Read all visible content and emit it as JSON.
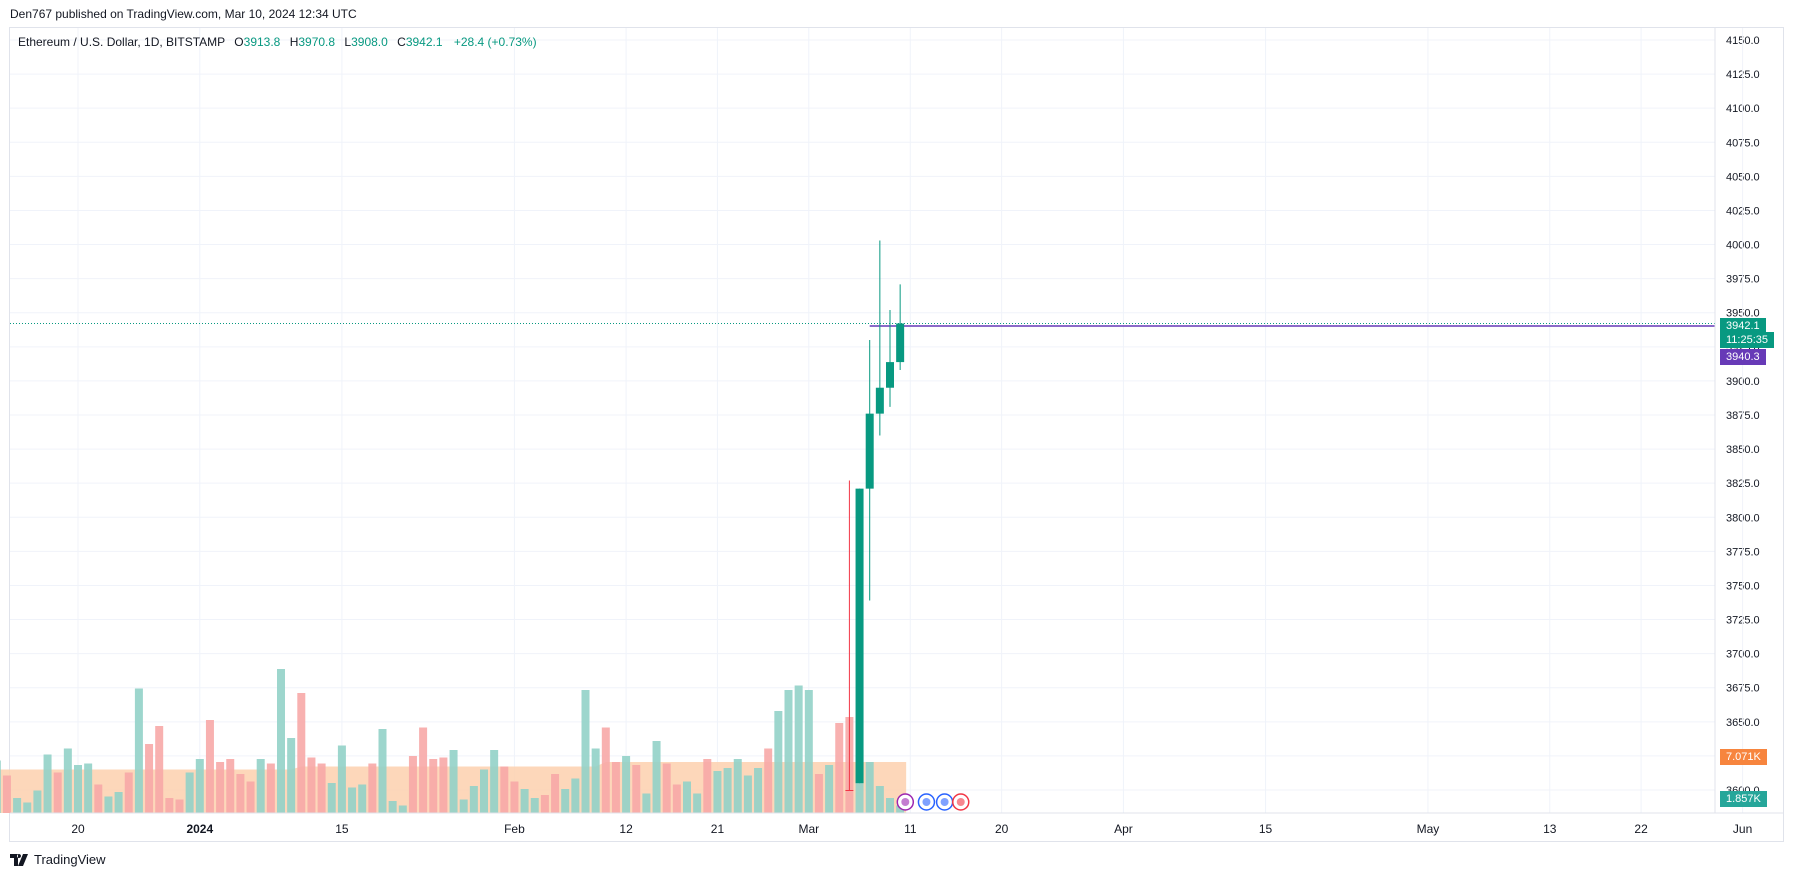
{
  "header": {
    "publisher_line": "Den767 published on TradingView.com, Mar 10, 2024 12:34 UTC"
  },
  "legend": {
    "symbol": "Ethereum / U.S. Dollar, 1D, BITSTAMP",
    "o_label": "O",
    "o_value": "3913.8",
    "h_label": "H",
    "h_value": "3970.8",
    "l_label": "L",
    "l_value": "3908.0",
    "c_label": "C",
    "c_value": "3942.1",
    "change": "+28.4 (+0.73%)"
  },
  "labels": {
    "last_price": "3942.1",
    "countdown": "11:25:35",
    "prev_close": "3940.3",
    "vol_ma": "7.071K",
    "volume": "1.857K"
  },
  "footer": {
    "brand": "TradingView"
  },
  "colors": {
    "up": "#089981",
    "down": "#f23645",
    "up_vol": "#92d1c8",
    "down_vol": "#f7a9a7",
    "vol_ma_fill": "#fdd0ae",
    "prev_close": "#673ab7",
    "vol_label": "#f7853e"
  },
  "chart_data": {
    "type": "candlestick",
    "y_ticks": [
      "4150.0",
      "4125.0",
      "4100.0",
      "4075.0",
      "4050.0",
      "4025.0",
      "4000.0",
      "3975.0",
      "3950.0",
      "3925.0",
      "3900.0",
      "3875.0",
      "3850.0",
      "3825.0",
      "3800.0",
      "3775.0",
      "3750.0",
      "3725.0",
      "3700.0",
      "3675.0",
      "3650.0",
      "3625.0",
      "3600.0"
    ],
    "x_ticks": [
      {
        "label": "20",
        "date": "2023-12-20"
      },
      {
        "label": "2024",
        "date": "2024-01-01",
        "bold": true
      },
      {
        "label": "15",
        "date": "2024-01-15"
      },
      {
        "label": "Feb",
        "date": "2024-02-01"
      },
      {
        "label": "12",
        "date": "2024-02-12"
      },
      {
        "label": "21",
        "date": "2024-02-21"
      },
      {
        "label": "Mar",
        "date": "2024-03-01"
      },
      {
        "label": "11",
        "date": "2024-03-11"
      },
      {
        "label": "20",
        "date": "2024-03-20"
      },
      {
        "label": "Apr",
        "date": "2024-04-01"
      },
      {
        "label": "15",
        "date": "2024-04-15"
      },
      {
        "label": "May",
        "date": "2024-05-01"
      },
      {
        "label": "13",
        "date": "2024-05-13"
      },
      {
        "label": "22",
        "date": "2024-05-22"
      },
      {
        "label": "Jun",
        "date": "2024-06-01"
      }
    ],
    "candles": [
      {
        "date": "2024-03-05",
        "o": 3600,
        "h": 3827,
        "l": 3600,
        "c": 3600,
        "dir": "down"
      },
      {
        "date": "2024-03-06",
        "o": 3605,
        "h": 3821,
        "l": 3605,
        "c": 3821,
        "dir": "up"
      },
      {
        "date": "2024-03-07",
        "o": 3821,
        "h": 3930,
        "l": 3739,
        "c": 3876,
        "dir": "up"
      },
      {
        "date": "2024-03-08",
        "o": 3876,
        "h": 4003,
        "l": 3860,
        "c": 3895,
        "dir": "up"
      },
      {
        "date": "2024-03-09",
        "o": 3895,
        "h": 3952,
        "l": 3881,
        "c": 3913.8,
        "dir": "up"
      },
      {
        "date": "2024-03-10",
        "o": 3913.8,
        "h": 3970.8,
        "l": 3908.0,
        "c": 3942.1,
        "dir": "up"
      }
    ],
    "volume_bars": [
      {
        "date": "2023-12-12",
        "v": 0.35,
        "dir": "up"
      },
      {
        "date": "2023-12-13",
        "v": 0.25,
        "dir": "down"
      },
      {
        "date": "2023-12-14",
        "v": 0.1,
        "dir": "up"
      },
      {
        "date": "2023-12-15",
        "v": 0.07,
        "dir": "up"
      },
      {
        "date": "2023-12-16",
        "v": 0.15,
        "dir": "up"
      },
      {
        "date": "2023-12-17",
        "v": 0.39,
        "dir": "up"
      },
      {
        "date": "2023-12-18",
        "v": 0.27,
        "dir": "down"
      },
      {
        "date": "2023-12-19",
        "v": 0.43,
        "dir": "up"
      },
      {
        "date": "2023-12-20",
        "v": 0.32,
        "dir": "up"
      },
      {
        "date": "2023-12-21",
        "v": 0.33,
        "dir": "up"
      },
      {
        "date": "2023-12-22",
        "v": 0.19,
        "dir": "down"
      },
      {
        "date": "2023-12-23",
        "v": 0.11,
        "dir": "up"
      },
      {
        "date": "2023-12-24",
        "v": 0.14,
        "dir": "up"
      },
      {
        "date": "2023-12-25",
        "v": 0.27,
        "dir": "down"
      },
      {
        "date": "2023-12-26",
        "v": 0.83,
        "dir": "up"
      },
      {
        "date": "2023-12-27",
        "v": 0.46,
        "dir": "down"
      },
      {
        "date": "2023-12-28",
        "v": 0.58,
        "dir": "down"
      },
      {
        "date": "2023-12-29",
        "v": 0.1,
        "dir": "down"
      },
      {
        "date": "2023-12-30",
        "v": 0.09,
        "dir": "down"
      },
      {
        "date": "2023-12-31",
        "v": 0.27,
        "dir": "up"
      },
      {
        "date": "2024-01-01",
        "v": 0.36,
        "dir": "up"
      },
      {
        "date": "2024-01-02",
        "v": 0.62,
        "dir": "down"
      },
      {
        "date": "2024-01-03",
        "v": 0.34,
        "dir": "down"
      },
      {
        "date": "2024-01-04",
        "v": 0.36,
        "dir": "down"
      },
      {
        "date": "2024-01-05",
        "v": 0.26,
        "dir": "down"
      },
      {
        "date": "2024-01-06",
        "v": 0.21,
        "dir": "down"
      },
      {
        "date": "2024-01-07",
        "v": 0.36,
        "dir": "up"
      },
      {
        "date": "2024-01-08",
        "v": 0.33,
        "dir": "down"
      },
      {
        "date": "2024-01-09",
        "v": 0.96,
        "dir": "up"
      },
      {
        "date": "2024-01-10",
        "v": 0.5,
        "dir": "up"
      },
      {
        "date": "2024-01-11",
        "v": 0.8,
        "dir": "down"
      },
      {
        "date": "2024-01-12",
        "v": 0.37,
        "dir": "down"
      },
      {
        "date": "2024-01-13",
        "v": 0.33,
        "dir": "down"
      },
      {
        "date": "2024-01-14",
        "v": 0.2,
        "dir": "up"
      },
      {
        "date": "2024-01-15",
        "v": 0.45,
        "dir": "up"
      },
      {
        "date": "2024-01-16",
        "v": 0.17,
        "dir": "up"
      },
      {
        "date": "2024-01-17",
        "v": 0.19,
        "dir": "up"
      },
      {
        "date": "2024-01-18",
        "v": 0.33,
        "dir": "down"
      },
      {
        "date": "2024-01-19",
        "v": 0.56,
        "dir": "up"
      },
      {
        "date": "2024-01-20",
        "v": 0.08,
        "dir": "up"
      },
      {
        "date": "2024-01-21",
        "v": 0.05,
        "dir": "up"
      },
      {
        "date": "2024-01-22",
        "v": 0.38,
        "dir": "down"
      },
      {
        "date": "2024-01-23",
        "v": 0.57,
        "dir": "down"
      },
      {
        "date": "2024-01-24",
        "v": 0.36,
        "dir": "down"
      },
      {
        "date": "2024-01-25",
        "v": 0.37,
        "dir": "down"
      },
      {
        "date": "2024-01-26",
        "v": 0.42,
        "dir": "up"
      },
      {
        "date": "2024-01-27",
        "v": 0.09,
        "dir": "up"
      },
      {
        "date": "2024-01-28",
        "v": 0.18,
        "dir": "up"
      },
      {
        "date": "2024-01-29",
        "v": 0.29,
        "dir": "up"
      },
      {
        "date": "2024-01-30",
        "v": 0.42,
        "dir": "up"
      },
      {
        "date": "2024-01-31",
        "v": 0.31,
        "dir": "down"
      },
      {
        "date": "2024-02-01",
        "v": 0.21,
        "dir": "down"
      },
      {
        "date": "2024-02-02",
        "v": 0.16,
        "dir": "up"
      },
      {
        "date": "2024-02-03",
        "v": 0.1,
        "dir": "up"
      },
      {
        "date": "2024-02-04",
        "v": 0.12,
        "dir": "down"
      },
      {
        "date": "2024-02-05",
        "v": 0.26,
        "dir": "down"
      },
      {
        "date": "2024-02-06",
        "v": 0.16,
        "dir": "up"
      },
      {
        "date": "2024-02-07",
        "v": 0.23,
        "dir": "up"
      },
      {
        "date": "2024-02-08",
        "v": 0.82,
        "dir": "up"
      },
      {
        "date": "2024-02-09",
        "v": 0.43,
        "dir": "up"
      },
      {
        "date": "2024-02-10",
        "v": 0.57,
        "dir": "down"
      },
      {
        "date": "2024-02-11",
        "v": 0.34,
        "dir": "down"
      },
      {
        "date": "2024-02-12",
        "v": 0.38,
        "dir": "up"
      },
      {
        "date": "2024-02-13",
        "v": 0.32,
        "dir": "down"
      },
      {
        "date": "2024-02-14",
        "v": 0.13,
        "dir": "up"
      },
      {
        "date": "2024-02-15",
        "v": 0.48,
        "dir": "up"
      },
      {
        "date": "2024-02-16",
        "v": 0.33,
        "dir": "down"
      },
      {
        "date": "2024-02-17",
        "v": 0.19,
        "dir": "down"
      },
      {
        "date": "2024-02-18",
        "v": 0.21,
        "dir": "up"
      },
      {
        "date": "2024-02-19",
        "v": 0.13,
        "dir": "up"
      },
      {
        "date": "2024-02-20",
        "v": 0.36,
        "dir": "down"
      },
      {
        "date": "2024-02-21",
        "v": 0.28,
        "dir": "up"
      },
      {
        "date": "2024-02-22",
        "v": 0.3,
        "dir": "up"
      },
      {
        "date": "2024-02-23",
        "v": 0.36,
        "dir": "up"
      },
      {
        "date": "2024-02-24",
        "v": 0.25,
        "dir": "up"
      },
      {
        "date": "2024-02-25",
        "v": 0.3,
        "dir": "up"
      },
      {
        "date": "2024-02-26",
        "v": 0.43,
        "dir": "down"
      },
      {
        "date": "2024-02-27",
        "v": 0.68,
        "dir": "up"
      },
      {
        "date": "2024-02-28",
        "v": 0.82,
        "dir": "up"
      },
      {
        "date": "2024-02-29",
        "v": 0.85,
        "dir": "up"
      },
      {
        "date": "2024-03-01",
        "v": 0.82,
        "dir": "up"
      },
      {
        "date": "2024-03-02",
        "v": 0.26,
        "dir": "down"
      },
      {
        "date": "2024-03-03",
        "v": 0.32,
        "dir": "up"
      },
      {
        "date": "2024-03-04",
        "v": 0.6,
        "dir": "down"
      },
      {
        "date": "2024-03-05",
        "v": 0.64,
        "dir": "down"
      },
      {
        "date": "2024-03-06",
        "v": 0.42,
        "dir": "up"
      },
      {
        "date": "2024-03-07",
        "v": 0.34,
        "dir": "up"
      },
      {
        "date": "2024-03-08",
        "v": 0.18,
        "dir": "up"
      },
      {
        "date": "2024-03-09",
        "v": 0.1,
        "dir": "up"
      },
      {
        "date": "2024-03-10",
        "v": 0.05,
        "dir": "up"
      }
    ],
    "last_price": 3942.1,
    "prev_close": 3940.3,
    "ylim": [
      3585,
      4160
    ]
  }
}
